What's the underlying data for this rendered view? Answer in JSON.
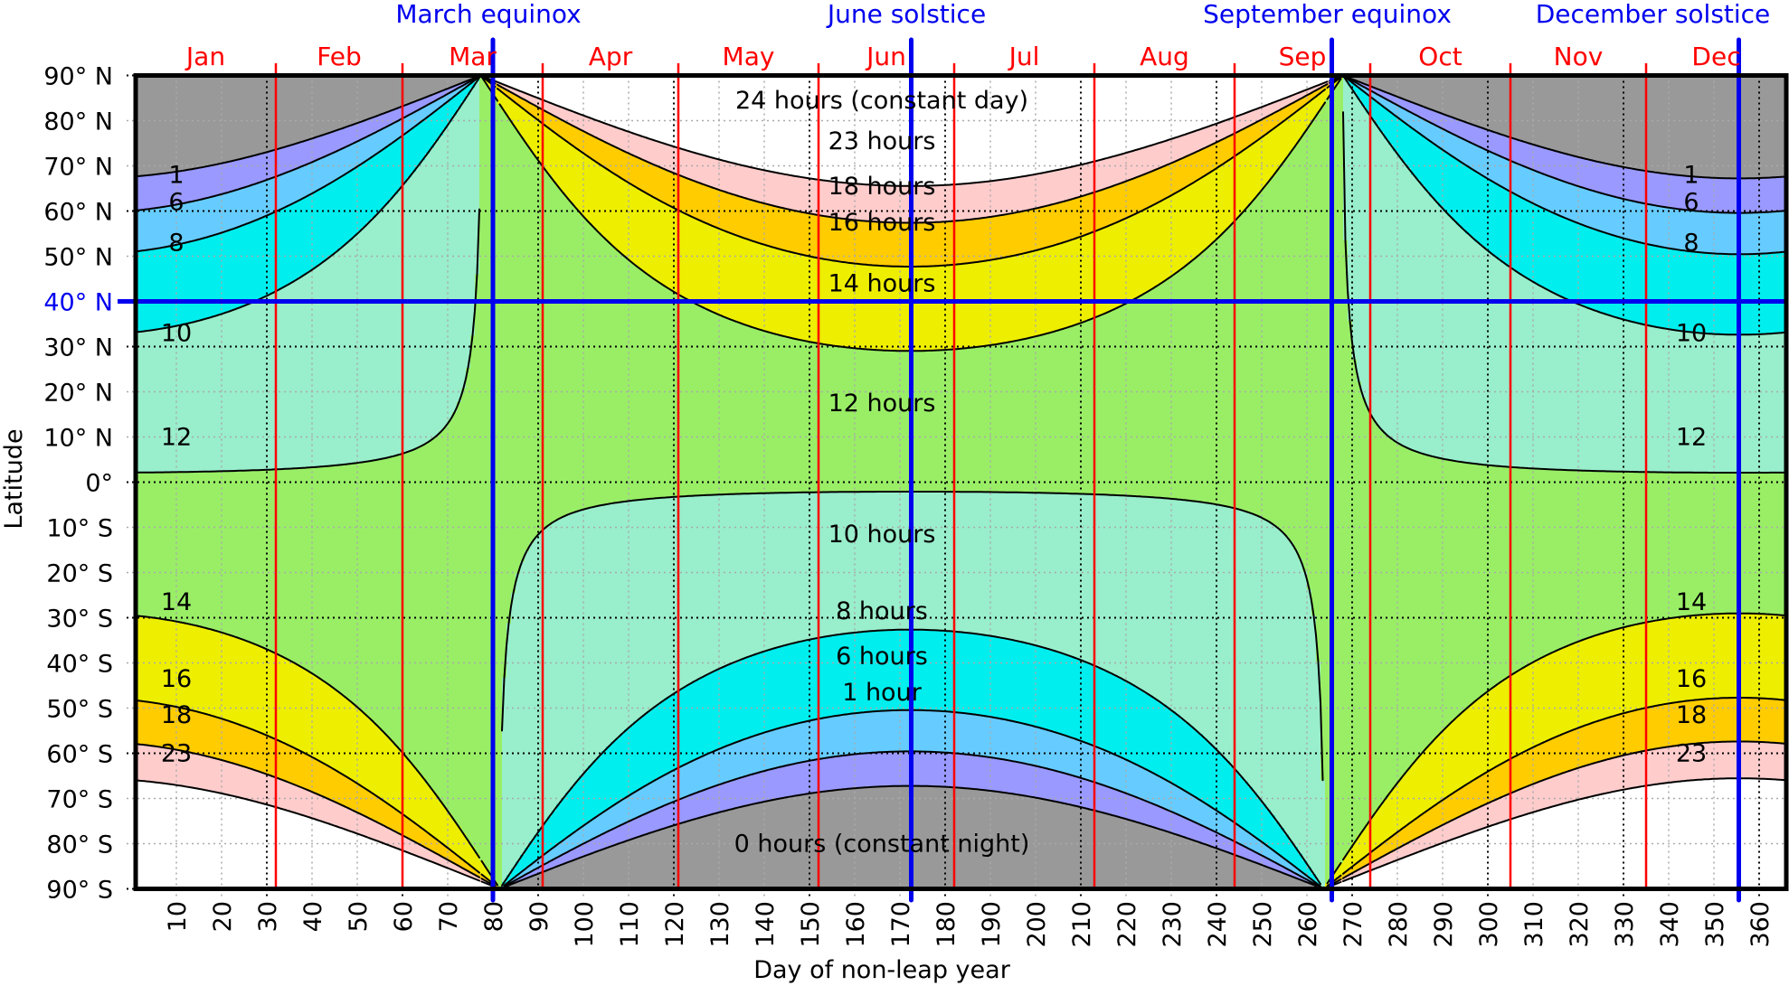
{
  "chart_data": {
    "type": "heatmap",
    "title": "",
    "xlabel": "Day of non-leap year",
    "ylabel": "Latitude",
    "xlim": [
      1,
      366
    ],
    "ylim": [
      -90,
      90
    ],
    "x_ticks": [
      10,
      20,
      30,
      40,
      50,
      60,
      70,
      80,
      90,
      100,
      110,
      120,
      130,
      140,
      150,
      160,
      170,
      180,
      190,
      200,
      210,
      220,
      230,
      240,
      250,
      260,
      270,
      280,
      290,
      300,
      310,
      320,
      330,
      340,
      350,
      360
    ],
    "y_ticks": [
      {
        "value": 90,
        "label": "90° N"
      },
      {
        "value": 80,
        "label": "80° N"
      },
      {
        "value": 70,
        "label": "70° N"
      },
      {
        "value": 60,
        "label": "60° N"
      },
      {
        "value": 50,
        "label": "50° N"
      },
      {
        "value": 40,
        "label": "40° N",
        "highlight": true
      },
      {
        "value": 30,
        "label": "30° N"
      },
      {
        "value": 20,
        "label": "20° N"
      },
      {
        "value": 10,
        "label": "10° N"
      },
      {
        "value": 0,
        "label": "0°"
      },
      {
        "value": -10,
        "label": "10° S"
      },
      {
        "value": -20,
        "label": "20° S"
      },
      {
        "value": -30,
        "label": "30° S"
      },
      {
        "value": -40,
        "label": "40° S"
      },
      {
        "value": -50,
        "label": "50° S"
      },
      {
        "value": -60,
        "label": "60° S"
      },
      {
        "value": -70,
        "label": "70° S"
      },
      {
        "value": -80,
        "label": "80° S"
      },
      {
        "value": -90,
        "label": "90° S"
      }
    ],
    "grid": true,
    "quantity": "hours of daylight",
    "contour_levels": [
      1,
      6,
      8,
      10,
      12,
      14,
      16,
      18,
      23
    ],
    "band_colors": [
      "#999999",
      "#9999ff",
      "#66ccff",
      "#00eeee",
      "#99eecc",
      "#99ee66",
      "#eeee00",
      "#ffcc00",
      "#ffcccc",
      "#ffffff"
    ],
    "contour_labels_middle": [
      "24 hours (constant day)",
      "23 hours",
      "18 hours",
      "16 hours",
      "14 hours",
      "12 hours",
      "10 hours",
      "8 hours",
      "6 hours",
      "1 hour",
      "0 hours (constant night)"
    ],
    "contour_labels_side": [
      "1",
      "6",
      "8",
      "10",
      "12",
      "14",
      "16",
      "18",
      "23"
    ],
    "months": [
      {
        "label": "Jan",
        "start": 1
      },
      {
        "label": "Feb",
        "start": 32
      },
      {
        "label": "Mar",
        "start": 60
      },
      {
        "label": "Apr",
        "start": 91
      },
      {
        "label": "May",
        "start": 121
      },
      {
        "label": "Jun",
        "start": 152
      },
      {
        "label": "Jul",
        "start": 182
      },
      {
        "label": "Aug",
        "start": 213
      },
      {
        "label": "Sep",
        "start": 244
      },
      {
        "label": "Oct",
        "start": 274
      },
      {
        "label": "Nov",
        "start": 305
      },
      {
        "label": "Dec",
        "start": 335
      }
    ],
    "events": [
      {
        "label": "March equinox",
        "day": 80
      },
      {
        "label": "June solstice",
        "day": 172.5
      },
      {
        "label": "September equinox",
        "day": 265.5
      },
      {
        "label": "December solstice",
        "day": 355.5
      }
    ],
    "highlight_latitude": 40,
    "colors": {
      "month_lines": "#ff0000",
      "event_lines": "#0000ee",
      "contours": "#000000"
    }
  }
}
